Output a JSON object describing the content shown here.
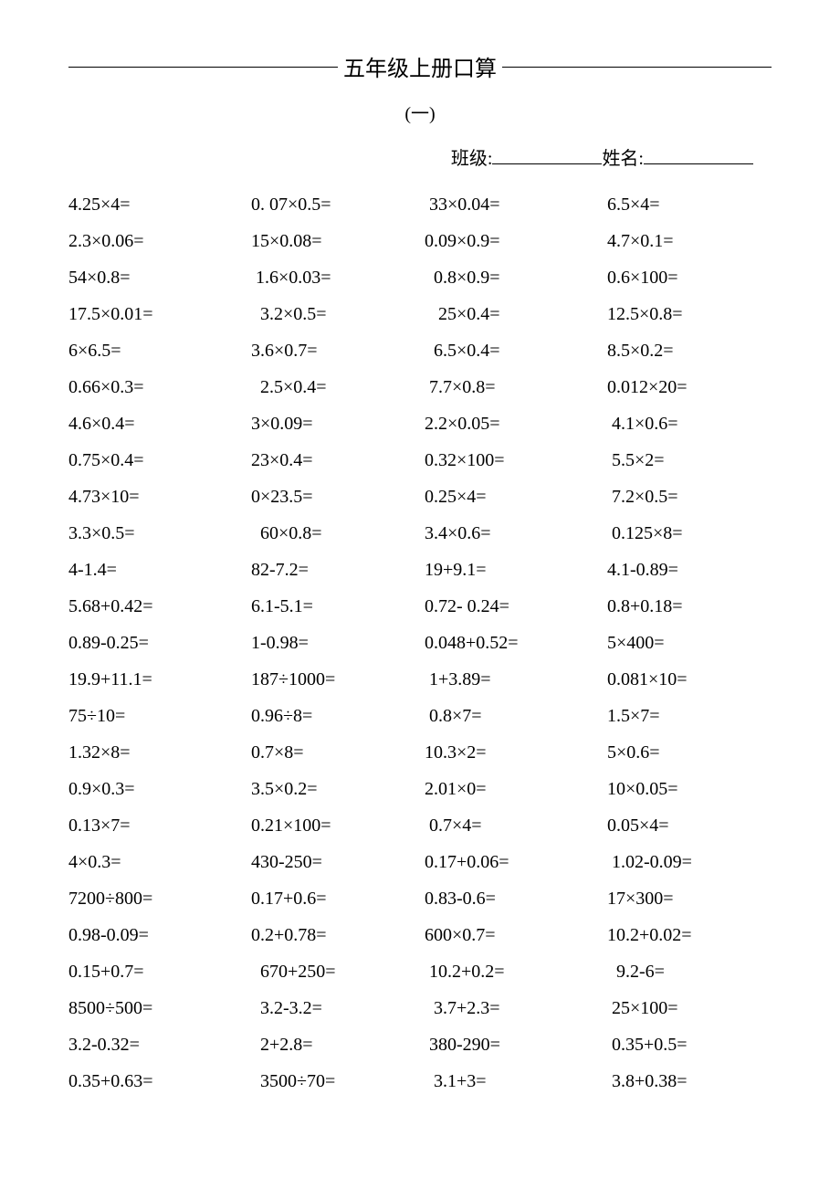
{
  "title": "五年级上册口算",
  "subtitle": "(一)",
  "header": {
    "class_label": "班级:",
    "name_label": "姓名:"
  },
  "font_family": "SimSun",
  "font_size_title": 24,
  "font_size_body": 20,
  "text_color": "#000000",
  "background_color": "#ffffff",
  "rows": [
    [
      "4.25×4=",
      "0. 07×0.5=",
      " 33×0.04=",
      "6.5×4="
    ],
    [
      "2.3×0.06=",
      "15×0.08=",
      "0.09×0.9=",
      "4.7×0.1="
    ],
    [
      "54×0.8=",
      " 1.6×0.03=",
      "  0.8×0.9=",
      "0.6×100="
    ],
    [
      "17.5×0.01=",
      "  3.2×0.5=",
      "   25×0.4=",
      "12.5×0.8="
    ],
    [
      "6×6.5=",
      "3.6×0.7=",
      "  6.5×0.4=",
      "8.5×0.2="
    ],
    [
      "0.66×0.3=",
      "  2.5×0.4=",
      " 7.7×0.8=",
      "0.012×20="
    ],
    [
      "4.6×0.4=",
      "3×0.09=",
      "2.2×0.05=",
      " 4.1×0.6="
    ],
    [
      "0.75×0.4=",
      "23×0.4=",
      "0.32×100=",
      " 5.5×2="
    ],
    [
      "4.73×10=",
      "0×23.5=",
      "0.25×4=",
      " 7.2×0.5="
    ],
    [
      "3.3×0.5=",
      "  60×0.8=",
      "3.4×0.6=",
      " 0.125×8="
    ],
    [
      "4-1.4=",
      "82-7.2=",
      "19+9.1=",
      "4.1-0.89="
    ],
    [
      "5.68+0.42=",
      "6.1-5.1=",
      "0.72- 0.24=",
      "0.8+0.18="
    ],
    [
      "0.89-0.25=",
      "1-0.98=",
      "0.048+0.52=",
      "5×400="
    ],
    [
      "19.9+11.1=",
      "187÷1000=",
      " 1+3.89=",
      "0.081×10="
    ],
    [
      "75÷10=",
      "0.96÷8=",
      " 0.8×7=",
      "1.5×7="
    ],
    [
      "1.32×8=",
      "0.7×8=",
      "10.3×2=",
      "5×0.6="
    ],
    [
      "0.9×0.3=",
      "3.5×0.2=",
      "2.01×0=",
      "10×0.05="
    ],
    [
      "0.13×7=",
      "0.21×100=",
      " 0.7×4=",
      "0.05×4="
    ],
    [
      "4×0.3=",
      "430-250=",
      "0.17+0.06=",
      " 1.02-0.09="
    ],
    [
      "7200÷800=",
      "0.17+0.6=",
      "0.83-0.6=",
      "17×300="
    ],
    [
      "0.98-0.09=",
      "0.2+0.78=",
      "600×0.7=",
      "10.2+0.02="
    ],
    [
      "0.15+0.7=",
      "  670+250=",
      " 10.2+0.2=",
      "  9.2-6="
    ],
    [
      "8500÷500=",
      "  3.2-3.2=",
      "  3.7+2.3=",
      " 25×100="
    ],
    [
      "3.2-0.32=",
      "  2+2.8=",
      " 380-290=",
      " 0.35+0.5="
    ],
    [
      "0.35+0.63=",
      "  3500÷70=",
      "  3.1+3=",
      " 3.8+0.38="
    ]
  ]
}
